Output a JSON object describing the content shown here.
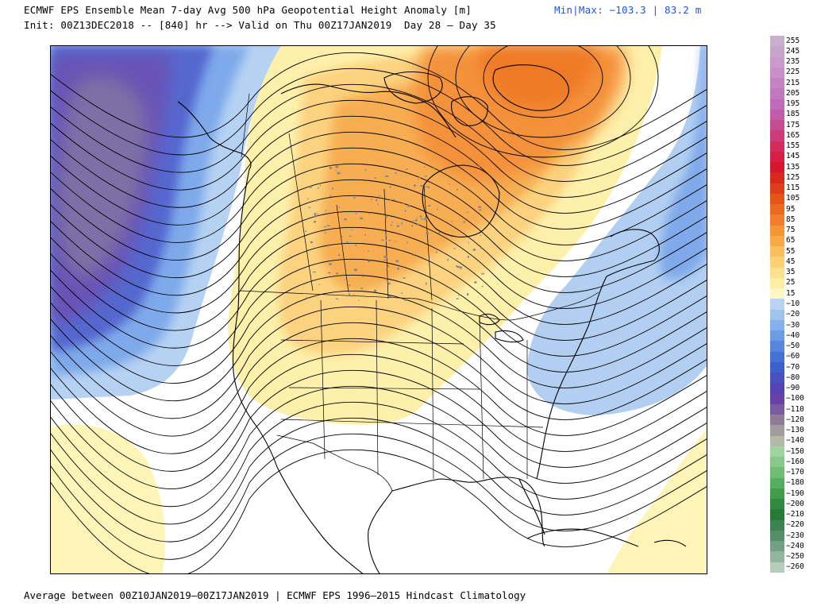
{
  "header": {
    "title": "ECMWF EPS Ensemble Mean 7-day Avg 500 hPa Geopotential Height Anomaly [m]",
    "minmax": "Min|Max: −103.3 | 83.2 m",
    "init": "Init: 00Z13DEC2018 -- [840] hr --> Valid on Thu 00Z17JAN2019  Day 28 – Day 35"
  },
  "footer": "Average between 00Z10JAN2019—00Z17JAN2019 | ECMWF EPS 1996–2015 Hindcast Climatology",
  "map": {
    "region": "North America",
    "field": "500 hPa geopotential height anomaly",
    "positive_color": "#f5a04a",
    "negative_color": "#5b55b8",
    "features": [
      "trough-gulf-of-alaska",
      "ridge-western-canada",
      "ridge-greenland",
      "trough-western-atlantic"
    ]
  },
  "colorbar": {
    "labels": [
      "255",
      "245",
      "235",
      "225",
      "215",
      "205",
      "195",
      "185",
      "175",
      "165",
      "155",
      "145",
      "135",
      "125",
      "115",
      "105",
      "95",
      "85",
      "75",
      "65",
      "55",
      "45",
      "35",
      "25",
      "15",
      "−10",
      "−20",
      "−30",
      "−40",
      "−50",
      "−60",
      "−70",
      "−80",
      "−90",
      "−100",
      "−110",
      "−120",
      "−130",
      "−140",
      "−150",
      "−160",
      "−170",
      "−180",
      "−190",
      "−200",
      "−210",
      "−220",
      "−230",
      "−240",
      "−250",
      "−260"
    ],
    "colors": [
      "#c8b0cc",
      "#c7a4c9",
      "#c99acb",
      "#c88fc8",
      "#c583c4",
      "#c278bf",
      "#bf6bb9",
      "#c05ba9",
      "#c74b91",
      "#cd3c7a",
      "#d22c5f",
      "#d51f45",
      "#d4162e",
      "#d9281e",
      "#df3f18",
      "#e55518",
      "#ea6a1f",
      "#ef7f2a",
      "#f49536",
      "#f8aa47",
      "#fbbe5c",
      "#fcd073",
      "#fde18c",
      "#fdeea6",
      "#fef7c4",
      "#b9d4f2",
      "#a0c3ee",
      "#86b0e9",
      "#6c9ce3",
      "#5686dd",
      "#4471d6",
      "#3e5fcc",
      "#4751bf",
      "#5545b3",
      "#6641a6",
      "#7a5b9d",
      "#8f7c98",
      "#a29c9c",
      "#b3b9a9",
      "#9fd3a0",
      "#86c98a",
      "#6dbd75",
      "#56ae60",
      "#419d4c",
      "#318b3e",
      "#287b36",
      "#3d8250",
      "#568e68",
      "#73a084",
      "#93b59f",
      "#b6ccbd"
    ]
  }
}
